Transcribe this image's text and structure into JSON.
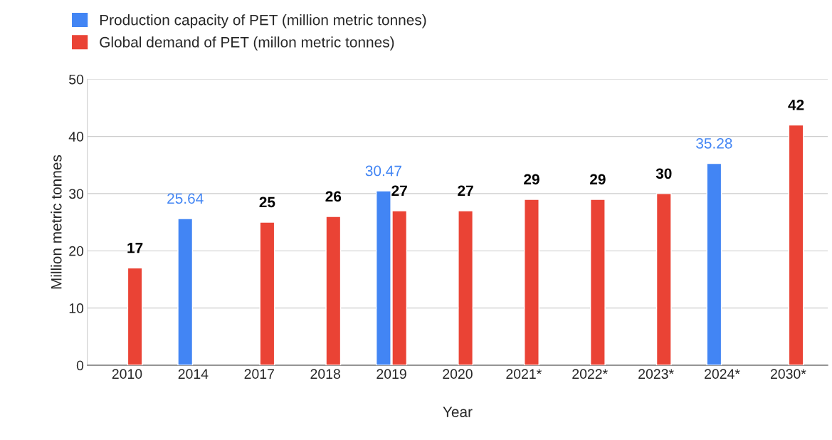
{
  "chart_data": {
    "type": "bar",
    "xlabel": "Year",
    "ylabel": "Million metric tonnes",
    "categories": [
      "2010",
      "2014",
      "2017",
      "2018",
      "2019",
      "2020",
      "2021*",
      "2022*",
      "2023*",
      "2024*",
      "2030*"
    ],
    "series": [
      {
        "name": "Production capacity of PET (million metric tonnes)",
        "color": "#4285f4",
        "values": [
          null,
          25.64,
          null,
          null,
          30.47,
          null,
          null,
          null,
          null,
          35.28,
          null
        ]
      },
      {
        "name": "Global demand of PET (millon metric tonnes)",
        "color": "#ea4335",
        "values": [
          17,
          null,
          25,
          26,
          27,
          27,
          29,
          29,
          30,
          null,
          42
        ]
      }
    ],
    "ylim": [
      0,
      50
    ],
    "yticks": [
      0,
      10,
      20,
      30,
      40,
      50
    ],
    "grid": "y",
    "legend": "top",
    "data_labels": true
  }
}
